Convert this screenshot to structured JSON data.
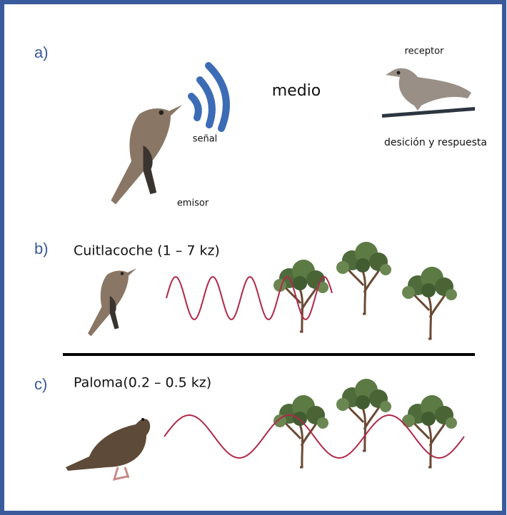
{
  "panel_a": {
    "label": "a)",
    "receptor": "receptor",
    "medio": "medio",
    "senal": "señal",
    "respuesta": "desición y respuesta",
    "emisor": "emisor"
  },
  "panel_b": {
    "label": "b)",
    "title": "Cuitlacoche (1 – 7 kz)"
  },
  "panel_c": {
    "label": "c)",
    "title": "Paloma(0.2 – 0.5 kz)"
  }
}
